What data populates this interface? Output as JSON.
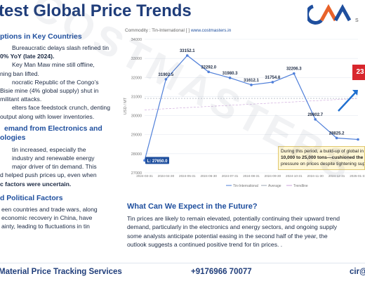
{
  "header": {
    "title": "test Global Price Trends",
    "logo_subtext": "S"
  },
  "left": {
    "section1_head": "ptions in Key Countries",
    "section1_lines": [
      "Bureaucratic delays slash refined tin",
      "0% YoY (late 2024).",
      "Key Man Maw mine still offline,",
      "ning ban lifted.",
      "nocratic Republic of the Congo’s",
      "Bisie mine (4% global supply) shut in",
      "militant attacks.",
      "elters face feedstock crunch, denting",
      "output along with lower inventories."
    ],
    "section2_head_lines": [
      "emand from Electronics and",
      "ologies"
    ],
    "section2_lines": [
      "tin increased, especially the",
      "industry and renewable energy",
      "major driver of tin demand. This",
      "d helped push prices up, even when",
      "c factors were uncertain."
    ],
    "section3_head": "d Political Factors",
    "section3_lines": [
      "een countries and trade wars, along",
      "economic recovery in China, have",
      "ainty, leading to fluctuations in tin"
    ]
  },
  "chart": {
    "commodity_label": "Commodity : Tin-International [ ]",
    "url": "www.costmasters.in",
    "ylabel": "USD / MT",
    "min_label": "L: 27650.0",
    "badge_value": "23",
    "annotation_lines": [
      "During this period, a build-up of global in",
      "10,000 to 25,000 tons—cushioned the m",
      "pressure on prices despite tightening sup"
    ],
    "legend": [
      "Tin-International",
      "Average",
      "Trendline"
    ]
  },
  "chart_data": {
    "type": "line",
    "x": [
      "2024-03-31",
      "2024-04-30",
      "2024-05-31",
      "2024-06-30",
      "2024-07-31",
      "2024-08-31",
      "2024-09-30",
      "2024-10-31",
      "2024-11-30",
      "2024-12-31",
      "2025-01-31"
    ],
    "y": [
      27650.0,
      31902.5,
      33152.1,
      32292.0,
      31980.3,
      31612.1,
      31754.8,
      32206.3,
      29802.7,
      28825.2,
      28750.0
    ],
    "data_labels": [
      "",
      "31902.5",
      "33152.1",
      "32292.0",
      "31980.3",
      "31612.1",
      "31754.8",
      "32206.3",
      "29802.7",
      "28825.2",
      ""
    ],
    "ylim": [
      27000,
      34000
    ],
    "yticks": [
      27000,
      28000,
      29000,
      30000,
      31000,
      32000,
      33000,
      34000
    ],
    "series_color": "#4f7fd9",
    "grid": true
  },
  "future": {
    "head": "What Can We Expect in the Future?",
    "lines": [
      "Tin prices are likely to remain elevated, potentially continuing their upward trend",
      "demand, particularly in the electronics and energy sectors, and ongoing supply",
      "some analysts anticipate potential easing in the second half of the year, the",
      "outlook suggests a continued positive trend for tin prices. ."
    ]
  },
  "footer": {
    "left": "Material Price Tracking Services",
    "phone": "+9176966 70077",
    "right": "cir@"
  },
  "watermark": "COSTMASTERS"
}
